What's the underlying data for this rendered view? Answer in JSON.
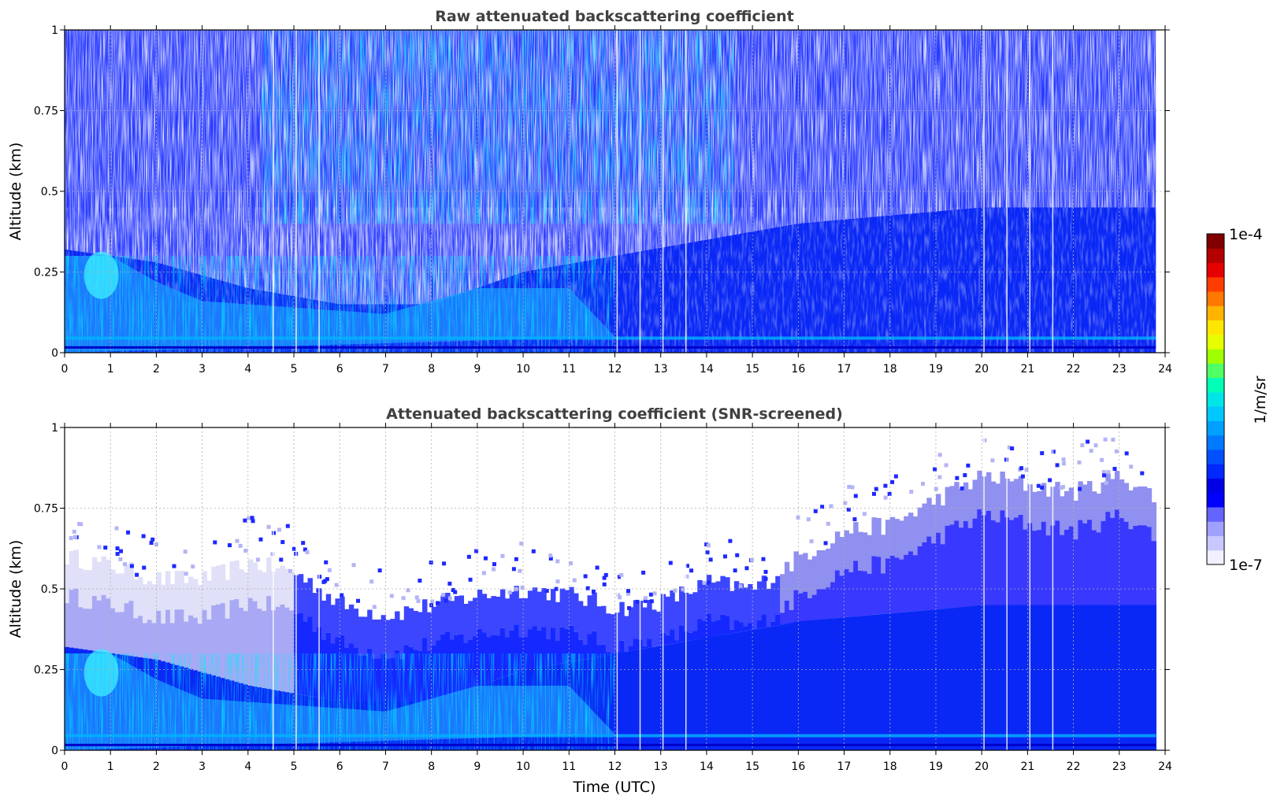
{
  "chart_data": [
    {
      "type": "heatmap",
      "title": "Raw attenuated backscattering coefficient",
      "xlabel": "",
      "ylabel": "Altitude (km)",
      "xlim": [
        0,
        24
      ],
      "ylim": [
        0,
        1
      ],
      "xticks": [
        "0",
        "1",
        "2",
        "3",
        "4",
        "5",
        "6",
        "7",
        "8",
        "9",
        "10",
        "11",
        "12",
        "13",
        "14",
        "15",
        "16",
        "17",
        "18",
        "19",
        "20",
        "21",
        "22",
        "23",
        "24"
      ],
      "yticks": [
        "0",
        "0.25",
        "0.5",
        "0.75",
        "1"
      ],
      "data_end_time": 23.8,
      "grid": true,
      "colorscale": "jet (log scale)",
      "description_points": [
        {
          "time": 0.8,
          "altitude": 0.25,
          "level": "high"
        },
        {
          "time": 3.0,
          "altitude": 0.1,
          "level": "medium"
        },
        {
          "time": 6.5,
          "altitude": 0.05,
          "level": "high"
        },
        {
          "time": 18.0,
          "altitude": 0.2,
          "level": "low"
        }
      ],
      "boundary_layer_top": [
        {
          "time": 0,
          "altitude": 0.32
        },
        {
          "time": 2,
          "altitude": 0.28
        },
        {
          "time": 4,
          "altitude": 0.2
        },
        {
          "time": 6,
          "altitude": 0.15
        },
        {
          "time": 8,
          "altitude": 0.15
        },
        {
          "time": 10,
          "altitude": 0.25
        },
        {
          "time": 12,
          "altitude": 0.3
        },
        {
          "time": 16,
          "altitude": 0.4
        },
        {
          "time": 20,
          "altitude": 0.45
        },
        {
          "time": 23.8,
          "altitude": 0.45
        }
      ]
    },
    {
      "type": "heatmap",
      "title": "Attenuated backscattering coefficient (SNR-screened)",
      "xlabel": "Time (UTC)",
      "ylabel": "Altitude (km)",
      "xlim": [
        0,
        24
      ],
      "ylim": [
        0,
        1
      ],
      "xticks": [
        "0",
        "1",
        "2",
        "3",
        "4",
        "5",
        "6",
        "7",
        "8",
        "9",
        "10",
        "11",
        "12",
        "13",
        "14",
        "15",
        "16",
        "17",
        "18",
        "19",
        "20",
        "21",
        "22",
        "23",
        "24"
      ],
      "yticks": [
        "0",
        "0.25",
        "0.5",
        "0.75",
        "1"
      ],
      "data_end_time": 23.8,
      "grid": true,
      "colorscale": "jet (log scale)",
      "screened_top": [
        {
          "time": 0,
          "altitude": 0.6
        },
        {
          "time": 1,
          "altitude": 0.57
        },
        {
          "time": 2,
          "altitude": 0.53
        },
        {
          "time": 3,
          "altitude": 0.53
        },
        {
          "time": 4,
          "altitude": 0.58
        },
        {
          "time": 5,
          "altitude": 0.55
        },
        {
          "time": 6,
          "altitude": 0.45
        },
        {
          "time": 7,
          "altitude": 0.42
        },
        {
          "time": 8,
          "altitude": 0.45
        },
        {
          "time": 9,
          "altitude": 0.48
        },
        {
          "time": 10,
          "altitude": 0.5
        },
        {
          "time": 11,
          "altitude": 0.48
        },
        {
          "time": 12,
          "altitude": 0.44
        },
        {
          "time": 13,
          "altitude": 0.46
        },
        {
          "time": 14,
          "altitude": 0.52
        },
        {
          "time": 15,
          "altitude": 0.5
        },
        {
          "time": 16,
          "altitude": 0.6
        },
        {
          "time": 17,
          "altitude": 0.68
        },
        {
          "time": 18,
          "altitude": 0.7
        },
        {
          "time": 19,
          "altitude": 0.78
        },
        {
          "time": 20,
          "altitude": 0.85
        },
        {
          "time": 21,
          "altitude": 0.82
        },
        {
          "time": 22,
          "altitude": 0.8
        },
        {
          "time": 23,
          "altitude": 0.85
        },
        {
          "time": 23.8,
          "altitude": 0.78
        }
      ]
    }
  ],
  "colorbar": {
    "label": "1/m/sr",
    "max_label": "1e-4",
    "min_label": "1e-7",
    "colors": [
      "#f0f0ff",
      "#c8c8ff",
      "#a0a0ff",
      "#6464ff",
      "#0000ff",
      "#0000e6",
      "#0028ff",
      "#0050ff",
      "#0078ff",
      "#00a0ff",
      "#00c8ff",
      "#00e6e6",
      "#00ffb4",
      "#50ff64",
      "#a0ff00",
      "#e6ff00",
      "#ffe600",
      "#ffb400",
      "#ff7800",
      "#ff3c00",
      "#e60000",
      "#b40000",
      "#800000"
    ]
  },
  "gaps": [
    4.55,
    5.05,
    5.55,
    12.05,
    12.55,
    13.05,
    13.55,
    20.05,
    20.55,
    21.05,
    21.55
  ]
}
